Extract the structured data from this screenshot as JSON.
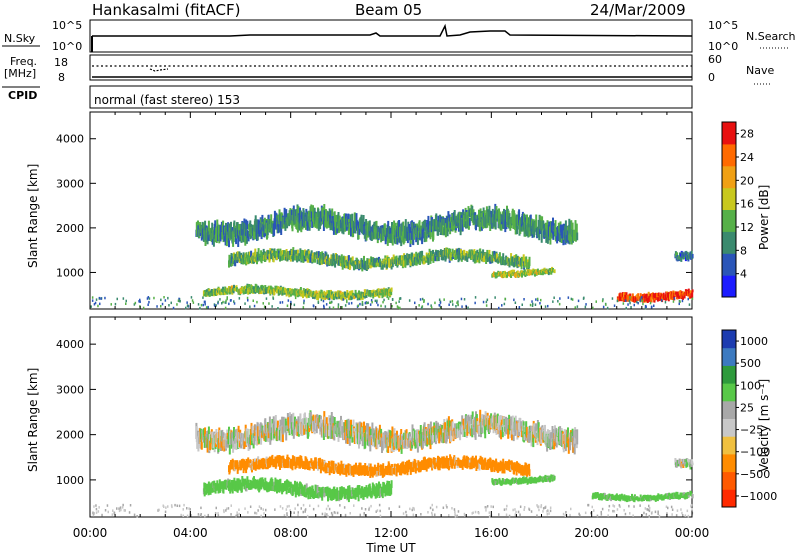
{
  "header": {
    "station": "Hankasalmi (fitACF)",
    "beam": "Beam 05",
    "date": "24/Mar/2009"
  },
  "strip_nsky": {
    "left_label": "N.Sky",
    "right_label": "N.Search",
    "tick_top": "10^5",
    "tick_bottom": "10^0",
    "right_tick_top": "10^5",
    "right_tick_bottom": "10^0"
  },
  "strip_freq": {
    "left_label_1": "Freq.",
    "left_label_2": "[MHz]",
    "tick_top": "18",
    "tick_bottom": "8",
    "right_label": "Nave",
    "right_tick_top": "60",
    "right_tick_bottom": "0"
  },
  "cpid": {
    "label": "CPID",
    "mode": "normal (fast stereo) 153"
  },
  "colors": {
    "power_scale": [
      "#1c1cff",
      "#2a55b8",
      "#3a8a6e",
      "#56b048",
      "#c8c81e",
      "#f0a014",
      "#ff6a00",
      "#e81010"
    ],
    "velocity_scale": [
      "#ff2a00",
      "#ff5a00",
      "#ff8c00",
      "#f0c040",
      "#c8c8c8",
      "#a8a8a8",
      "#58c848",
      "#2e9a3c",
      "#3c7ac0",
      "#1c3cb0"
    ]
  },
  "chart_data": [
    {
      "type": "heatmap",
      "title": "",
      "xlabel": "",
      "ylabel": "Slant Range [km]",
      "x_ticks": [
        "00:00",
        "04:00",
        "08:00",
        "12:00",
        "16:00",
        "20:00",
        "00:00"
      ],
      "y_ticks": [
        "1000",
        "2000",
        "3000",
        "4000"
      ],
      "ylim": [
        180,
        4600
      ],
      "xlim_hours": [
        0,
        24
      ],
      "colorbar": {
        "label": "Power [dB]",
        "ticks": [
          "4",
          "8",
          "12",
          "16",
          "20",
          "24",
          "28"
        ],
        "range": [
          0,
          30
        ]
      },
      "echo_regions": [
        {
          "t_start": 4.2,
          "t_end": 19.4,
          "range_center": 2050,
          "range_width": 500,
          "value": 10
        },
        {
          "t_start": 5.5,
          "t_end": 17.5,
          "range_center": 1300,
          "range_width": 280,
          "value": 12
        },
        {
          "t_start": 4.5,
          "t_end": 12.0,
          "range_center": 550,
          "range_width": 200,
          "value": 14
        },
        {
          "t_start": 16.0,
          "t_end": 18.5,
          "range_center": 1000,
          "range_width": 150,
          "value": 16
        },
        {
          "t_start": 21.0,
          "t_end": 24.0,
          "range_center": 500,
          "range_width": 200,
          "value": 26
        },
        {
          "t_start": 23.3,
          "t_end": 24.0,
          "range_center": 1300,
          "range_width": 220,
          "value": 8
        }
      ]
    },
    {
      "type": "heatmap",
      "title": "",
      "xlabel": "Time UT",
      "ylabel": "Slant Range [km]",
      "x_ticks": [
        "00:00",
        "04:00",
        "08:00",
        "12:00",
        "16:00",
        "20:00",
        "00:00"
      ],
      "y_ticks": [
        "1000",
        "2000",
        "3000",
        "4000"
      ],
      "ylim": [
        180,
        4600
      ],
      "xlim_hours": [
        0,
        24
      ],
      "colorbar": {
        "label": "Velocity [m s⁻¹]",
        "ticks": [
          "1000",
          "500",
          "100",
          "25",
          "−25",
          "−100",
          "−500",
          "−1000"
        ]
      },
      "echo_regions": [
        {
          "t_start": 4.2,
          "t_end": 19.4,
          "range_center": 2050,
          "range_width": 500,
          "value": 0
        },
        {
          "t_start": 5.5,
          "t_end": 17.5,
          "range_center": 1300,
          "range_width": 280,
          "value": -60
        },
        {
          "t_start": 4.5,
          "t_end": 12.0,
          "range_center": 800,
          "range_width": 300,
          "value": 60
        },
        {
          "t_start": 16.0,
          "t_end": 18.5,
          "range_center": 1000,
          "range_width": 150,
          "value": 60
        },
        {
          "t_start": 20.0,
          "t_end": 24.0,
          "range_center": 650,
          "range_width": 150,
          "value": 60
        },
        {
          "t_start": 23.3,
          "t_end": 24.0,
          "range_center": 1300,
          "range_width": 220,
          "value": 0
        }
      ]
    }
  ]
}
